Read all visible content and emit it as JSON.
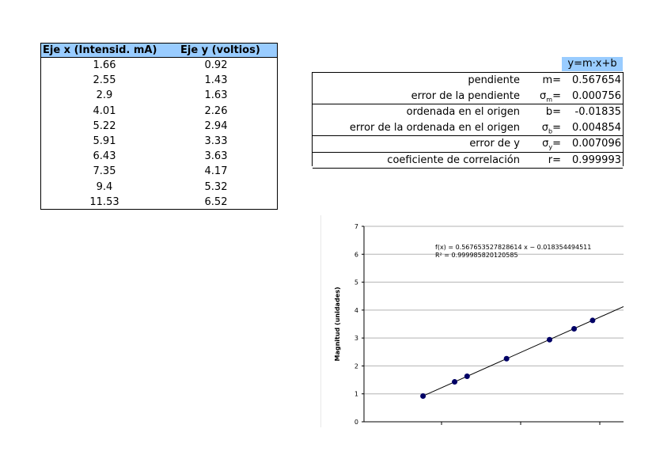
{
  "data_table": {
    "header_x": "Eje x (Intensid. mA)",
    "header_y": "Eje y (voltios)",
    "rows": [
      {
        "x": "1.66",
        "y": "0.92"
      },
      {
        "x": "2.55",
        "y": "1.43"
      },
      {
        "x": "2.9",
        "y": "1.63"
      },
      {
        "x": "4.01",
        "y": "2.26"
      },
      {
        "x": "5.22",
        "y": "2.94"
      },
      {
        "x": "5.91",
        "y": "3.33"
      },
      {
        "x": "6.43",
        "y": "3.63"
      },
      {
        "x": "7.35",
        "y": "4.17"
      },
      {
        "x": "9.4",
        "y": "5.32"
      },
      {
        "x": "11.53",
        "y": "6.52"
      }
    ]
  },
  "results": {
    "equation": "y=m·x+b",
    "groups": [
      [
        {
          "label": "pendiente",
          "sym": "m=",
          "sub": "",
          "value": "0.567654"
        },
        {
          "label": "error de la pendiente",
          "sym": "σ",
          "sub": "m",
          "value": "0.000756"
        }
      ],
      [
        {
          "label": "ordenada en el origen",
          "sym": "b=",
          "sub": "",
          "value": "-0.01835"
        },
        {
          "label": "error de la ordenada en el origen",
          "sym": "σ",
          "sub": "b",
          "value": "0.004854"
        }
      ],
      [
        {
          "label": "error de y",
          "sym": "σ",
          "sub": "y",
          "value": "0.007096"
        }
      ],
      [
        {
          "label": "coeficiente de correlación",
          "sym": "r=",
          "sub": "",
          "value": "0.999993"
        }
      ]
    ]
  },
  "chart_data": {
    "type": "scatter",
    "ylabel": "Magnitud  (unidades)",
    "ylim": [
      0,
      7
    ],
    "xlim": [
      0,
      7.3
    ],
    "y_ticks": [
      0,
      1,
      2,
      3,
      4,
      5,
      6,
      7
    ],
    "grid": true,
    "point_color": "#000066",
    "points": [
      {
        "x": 1.66,
        "y": 0.92
      },
      {
        "x": 2.55,
        "y": 1.43
      },
      {
        "x": 2.9,
        "y": 1.63
      },
      {
        "x": 4.01,
        "y": 2.26
      },
      {
        "x": 5.22,
        "y": 2.94
      },
      {
        "x": 5.91,
        "y": 3.33
      },
      {
        "x": 6.43,
        "y": 3.63
      }
    ],
    "trendline": {
      "slope": 0.567653527828614,
      "intercept": -0.018354494511
    },
    "annotation_fx": "f(x) = 0.567653527828614 x − 0.018354494511",
    "annotation_r2": "R² = 0.999985820120585"
  }
}
